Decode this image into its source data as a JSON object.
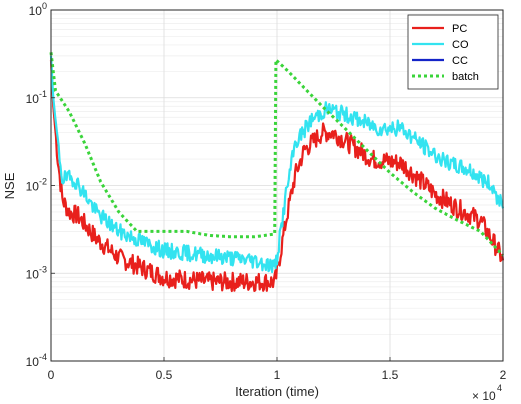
{
  "chart_data": {
    "type": "line",
    "xlabel": "Iteration (time)",
    "ylabel": "NSE",
    "x_multiplier_label": "× 10",
    "x_multiplier_exponent": "4",
    "xlim": [
      0,
      2
    ],
    "ylim_log10": [
      -4,
      0
    ],
    "yscale": "log",
    "grid": "major+minor",
    "legend_position": "top-right",
    "x_ticks": [
      {
        "value": 0,
        "label": "0"
      },
      {
        "value": 0.5,
        "label": "0.5"
      },
      {
        "value": 1,
        "label": "1"
      },
      {
        "value": 1.5,
        "label": "1.5"
      },
      {
        "value": 2,
        "label": "2"
      }
    ],
    "y_ticks": [
      {
        "exp": -4,
        "base": "10",
        "exponent": "-4"
      },
      {
        "exp": -3,
        "base": "10",
        "exponent": "-3"
      },
      {
        "exp": -2,
        "base": "10",
        "exponent": "-2"
      },
      {
        "exp": -1,
        "base": "10",
        "exponent": "-1"
      },
      {
        "exp": 0,
        "base": "10",
        "exponent": "0"
      }
    ],
    "series": [
      {
        "name": "PC",
        "color": "#e8201c",
        "style": "solid",
        "width": 2.2,
        "jitter": 0.11,
        "seed": 7,
        "points": [
          [
            0,
            0.27
          ],
          [
            0.01,
            0.08
          ],
          [
            0.03,
            0.02
          ],
          [
            0.05,
            0.007
          ],
          [
            0.08,
            0.005
          ],
          [
            0.12,
            0.0045
          ],
          [
            0.2,
            0.0025
          ],
          [
            0.3,
            0.0015
          ],
          [
            0.5,
            0.0009
          ],
          [
            0.7,
            0.0008
          ],
          [
            0.9,
            0.0008
          ],
          [
            0.99,
            0.0008
          ],
          [
            1.0,
            0.001
          ],
          [
            1.04,
            0.004
          ],
          [
            1.08,
            0.013
          ],
          [
            1.12,
            0.025
          ],
          [
            1.2,
            0.04
          ],
          [
            1.25,
            0.04
          ],
          [
            1.32,
            0.03
          ],
          [
            1.42,
            0.02
          ],
          [
            1.55,
            0.018
          ],
          [
            1.7,
            0.008
          ],
          [
            1.8,
            0.0055
          ],
          [
            1.9,
            0.004
          ],
          [
            1.97,
            0.002
          ],
          [
            2.0,
            0.0014
          ]
        ]
      },
      {
        "name": "CO",
        "color": "#33e3f0",
        "style": "solid",
        "width": 2.2,
        "jitter": 0.09,
        "seed": 19,
        "points": [
          [
            0,
            0.3
          ],
          [
            0.01,
            0.1
          ],
          [
            0.03,
            0.03
          ],
          [
            0.05,
            0.012
          ],
          [
            0.1,
            0.012
          ],
          [
            0.15,
            0.008
          ],
          [
            0.2,
            0.005
          ],
          [
            0.3,
            0.003
          ],
          [
            0.5,
            0.0018
          ],
          [
            0.7,
            0.0016
          ],
          [
            0.9,
            0.0014
          ],
          [
            0.99,
            0.0012
          ],
          [
            1.0,
            0.0015
          ],
          [
            1.04,
            0.008
          ],
          [
            1.08,
            0.03
          ],
          [
            1.15,
            0.055
          ],
          [
            1.22,
            0.075
          ],
          [
            1.3,
            0.065
          ],
          [
            1.45,
            0.045
          ],
          [
            1.55,
            0.045
          ],
          [
            1.65,
            0.028
          ],
          [
            1.75,
            0.018
          ],
          [
            1.85,
            0.015
          ],
          [
            1.95,
            0.01
          ],
          [
            2.0,
            0.0055
          ]
        ]
      },
      {
        "name": "CC",
        "color": "#1424c8",
        "style": "solid",
        "width": 2.2,
        "jitter": 0,
        "seed": 0,
        "points": []
      },
      {
        "name": "batch",
        "color": "#3ad43a",
        "style": "dotted",
        "width": 3,
        "jitter": 0.0,
        "seed": 3,
        "points": [
          [
            0,
            0.33
          ],
          [
            0.02,
            0.12
          ],
          [
            0.08,
            0.07
          ],
          [
            0.15,
            0.03
          ],
          [
            0.22,
            0.011
          ],
          [
            0.3,
            0.005
          ],
          [
            0.38,
            0.003
          ],
          [
            0.5,
            0.003
          ],
          [
            0.6,
            0.003
          ],
          [
            0.7,
            0.0027
          ],
          [
            0.8,
            0.0026
          ],
          [
            0.9,
            0.0026
          ],
          [
            0.99,
            0.0028
          ],
          [
            0.995,
            0.27
          ],
          [
            1.05,
            0.2
          ],
          [
            1.12,
            0.13
          ],
          [
            1.2,
            0.08
          ],
          [
            1.3,
            0.045
          ],
          [
            1.4,
            0.025
          ],
          [
            1.5,
            0.014
          ],
          [
            1.6,
            0.0085
          ],
          [
            1.7,
            0.0055
          ],
          [
            1.8,
            0.004
          ],
          [
            1.9,
            0.003
          ],
          [
            2.0,
            0.0016
          ]
        ]
      }
    ]
  }
}
